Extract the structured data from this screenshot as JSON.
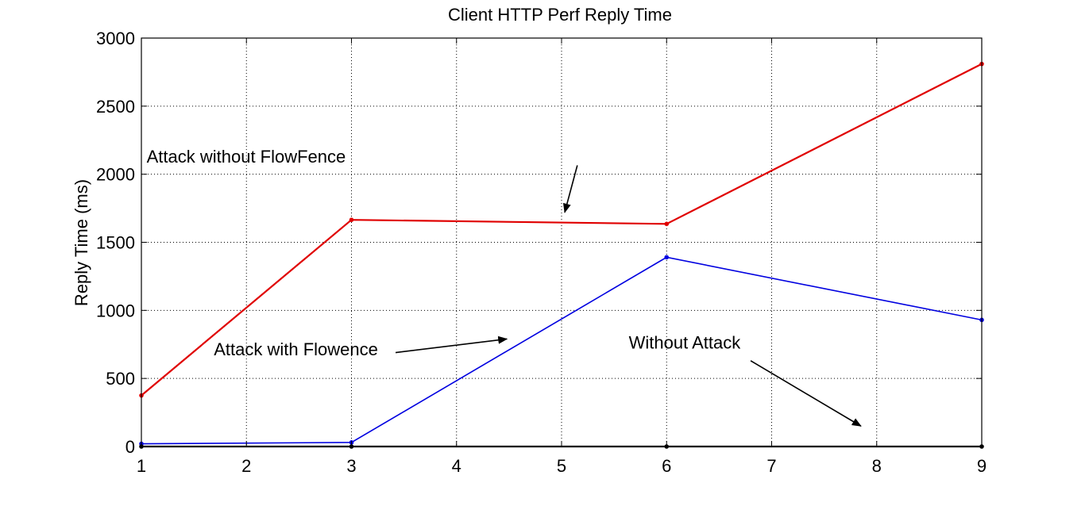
{
  "chart_data": {
    "type": "line",
    "title": "Client HTTP Perf Reply Time",
    "xlabel": "",
    "ylabel": "Reply Time (ms)",
    "xlim": [
      1,
      9
    ],
    "ylim": [
      0,
      3000
    ],
    "xticks": [
      1,
      2,
      3,
      4,
      5,
      6,
      7,
      8,
      9
    ],
    "yticks": [
      0,
      500,
      1000,
      1500,
      2000,
      2500,
      3000
    ],
    "grid": true,
    "legend": "none",
    "series": [
      {
        "name": "Attack without FlowFence",
        "color": "#e00000",
        "x": [
          1,
          3,
          6,
          9
        ],
        "y": [
          375,
          1665,
          1635,
          2810
        ]
      },
      {
        "name": "Attack with Flowence",
        "color": "#0000e0",
        "x": [
          1,
          3,
          6,
          9
        ],
        "y": [
          20,
          30,
          1390,
          930
        ]
      },
      {
        "name": "Without Attack",
        "color": "#000000",
        "x": [
          1,
          3,
          6,
          9
        ],
        "y": [
          0,
          0,
          0,
          0
        ]
      }
    ],
    "annotations": [
      {
        "text": "Attack without FlowFence",
        "series": 0,
        "label_at": [
          1.05,
          2085
        ],
        "arrow_from": [
          5.15,
          2065
        ],
        "arrow_to": [
          5.03,
          1720
        ]
      },
      {
        "text": "Attack with Flowence",
        "series": 1,
        "label_at": [
          1.69,
          670
        ],
        "arrow_from": [
          3.42,
          690
        ],
        "arrow_to": [
          4.48,
          790
        ]
      },
      {
        "text": "Without Attack",
        "series": 2,
        "label_at": [
          5.64,
          720
        ],
        "arrow_from": [
          6.8,
          630
        ],
        "arrow_to": [
          7.85,
          150
        ]
      }
    ]
  }
}
